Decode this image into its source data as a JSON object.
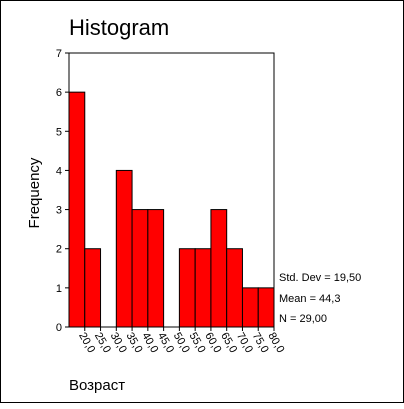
{
  "chart_data": {
    "type": "bar",
    "title": "Histogram",
    "xlabel": "Возраст",
    "ylabel": "Frequency",
    "ylim": [
      0,
      7
    ],
    "y_ticks": [
      "0",
      "1",
      "2",
      "3",
      "4",
      "5",
      "6",
      "7"
    ],
    "bin_width": 5,
    "bin_centers": [
      17.5,
      22.5,
      27.5,
      32.5,
      37.5,
      42.5,
      47.5,
      52.5,
      57.5,
      62.5,
      67.5,
      72.5,
      77.5
    ],
    "values": [
      6,
      2,
      0,
      4,
      3,
      3,
      0,
      2,
      2,
      3,
      2,
      1,
      1
    ],
    "x_ticks": [
      "20,0",
      "25,0",
      "30,0",
      "35,0",
      "40,0",
      "45,0",
      "50,0",
      "55,0",
      "60,0",
      "65,0",
      "70,0",
      "75,0",
      "80,0"
    ],
    "bar_color": "#ff0000",
    "grid": false,
    "stats": {
      "std_dev": "Std. Dev = 19,50",
      "mean": "Mean = 44,3",
      "n": "N = 29,00"
    }
  }
}
